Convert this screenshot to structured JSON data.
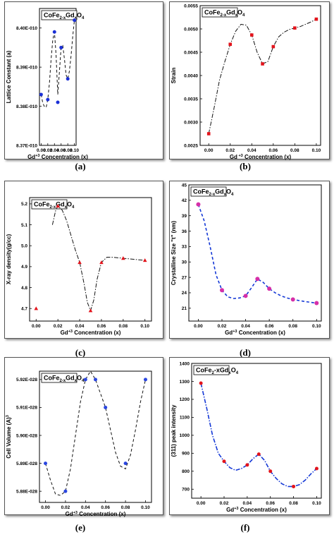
{
  "chart_data": [
    {
      "id": "a",
      "type": "scatter",
      "letter": "(a)",
      "legend": {
        "base": "CoFe",
        "sub1": "2-x",
        "mid": "Gd",
        "sub2": "x",
        "end": "O",
        "sub3": "4"
      },
      "xlabel": {
        "base": "Gd",
        "sup": "+3",
        "end": " Concentration (x)"
      },
      "ylabel": "Lattice Constant (a)",
      "x": [
        0.0,
        0.02,
        0.04,
        0.05,
        0.06,
        0.08,
        0.1
      ],
      "y": [
        8.383e-10,
        8.3817e-10,
        8.399e-10,
        8.381e-10,
        8.395e-10,
        8.387e-10,
        8.402e-10
      ],
      "xlim": [
        -0.005,
        0.105
      ],
      "ylim": [
        8.37e-10,
        8.405e-10
      ],
      "xticks": [
        0.0,
        0.02,
        0.04,
        0.06,
        0.08,
        0.1
      ],
      "xtick_labels": [
        "0.00",
        "0.02",
        "0.04",
        "0.06",
        "0.08",
        "0.10"
      ],
      "yticks": [
        8.37e-10,
        8.38e-10,
        8.39e-10,
        8.4e-10
      ],
      "ytick_labels": [
        "8.37E-010",
        "8.38E-010",
        "8.39E-010",
        "8.40E-010"
      ],
      "marker": "circle",
      "marker_color": "#1a2fd6",
      "line_style": "dash",
      "line_color": "#111111",
      "fit": [
        [
          0.0,
          8.383
        ],
        [
          0.005,
          8.3808
        ],
        [
          0.01,
          8.3799
        ],
        [
          0.015,
          8.3797
        ],
        [
          0.02,
          8.3817
        ],
        [
          0.025,
          8.386
        ],
        [
          0.03,
          8.392
        ],
        [
          0.035,
          8.397
        ],
        [
          0.04,
          8.399
        ],
        [
          0.045,
          8.393
        ],
        [
          0.05,
          8.383
        ],
        [
          0.055,
          8.389
        ],
        [
          0.06,
          8.395
        ],
        [
          0.065,
          8.3955
        ],
        [
          0.07,
          8.392
        ],
        [
          0.075,
          8.388
        ],
        [
          0.08,
          8.387
        ],
        [
          0.085,
          8.389
        ],
        [
          0.09,
          8.393
        ],
        [
          0.095,
          8.398
        ],
        [
          0.1,
          8.402
        ]
      ],
      "fit_scale": 1e-10
    },
    {
      "id": "b",
      "type": "scatter",
      "letter": "(b)",
      "legend": {
        "base": "CoFe",
        "sub1": "2-x",
        "mid": "Gd",
        "sub2": "x",
        "end": "O",
        "sub3": "4"
      },
      "xlabel": {
        "base": "Gd",
        "sup": " +3",
        "end": " Concentration (x)"
      },
      "ylabel": "Strain",
      "x": [
        0.0,
        0.02,
        0.04,
        0.05,
        0.06,
        0.08,
        0.1
      ],
      "y": [
        0.00275,
        0.00467,
        0.00487,
        0.00425,
        0.00462,
        0.00502,
        0.00521
      ],
      "xlim": [
        -0.008,
        0.104
      ],
      "ylim": [
        0.0025,
        0.0055
      ],
      "xticks": [
        0.0,
        0.02,
        0.04,
        0.06,
        0.08,
        0.1
      ],
      "xtick_labels": [
        "0.00",
        "0.02",
        "0.04",
        "0.06",
        "0.08",
        "0.10"
      ],
      "yticks": [
        0.0025,
        0.003,
        0.0035,
        0.004,
        0.0045,
        0.005,
        0.0055
      ],
      "ytick_labels": [
        "0.0025",
        "0.0030",
        "0.0035",
        "0.0040",
        "0.0045",
        "0.0050",
        "0.0055"
      ],
      "marker": "square",
      "marker_color": "#e3141c",
      "line_style": "dashdot",
      "line_color": "#111111",
      "fit": [
        [
          0.0,
          0.00275
        ],
        [
          0.005,
          0.0033
        ],
        [
          0.01,
          0.0039
        ],
        [
          0.015,
          0.0043
        ],
        [
          0.02,
          0.00467
        ],
        [
          0.025,
          0.00495
        ],
        [
          0.03,
          0.0051
        ],
        [
          0.035,
          0.00508
        ],
        [
          0.04,
          0.00487
        ],
        [
          0.045,
          0.0045
        ],
        [
          0.05,
          0.00425
        ],
        [
          0.055,
          0.0043
        ],
        [
          0.06,
          0.00462
        ],
        [
          0.065,
          0.00483
        ],
        [
          0.07,
          0.00493
        ],
        [
          0.075,
          0.00499
        ],
        [
          0.08,
          0.00502
        ],
        [
          0.085,
          0.00505
        ],
        [
          0.09,
          0.0051
        ],
        [
          0.095,
          0.00515
        ],
        [
          0.1,
          0.00521
        ]
      ],
      "fit_scale": 1
    },
    {
      "id": "c",
      "type": "scatter",
      "letter": "(c)",
      "legend": {
        "base": "CoFe",
        "sub1": "2-x",
        "mid": "Gd",
        "sub2": "x",
        "end": "O",
        "sub3": "4"
      },
      "xlabel": {
        "base": "Gd",
        "sup": "+3",
        "end": " Concentration (x)"
      },
      "ylabel": "X-ray density(g/cc)",
      "x": [
        0.0,
        0.02,
        0.04,
        0.05,
        0.06,
        0.08,
        0.1
      ],
      "y": [
        4.7,
        5.19,
        4.92,
        4.69,
        4.92,
        4.94,
        4.93
      ],
      "xlim": [
        -0.006,
        0.106
      ],
      "ylim": [
        4.64,
        5.23
      ],
      "xticks": [
        0.0,
        0.02,
        0.04,
        0.06,
        0.08,
        0.1
      ],
      "xtick_labels": [
        "0.00",
        "0.02",
        "0.04",
        "0.06",
        "0.08",
        "0.10"
      ],
      "yticks": [
        4.7,
        4.8,
        4.9,
        5.0,
        5.1,
        5.2
      ],
      "ytick_labels": [
        "4.7",
        "4.8",
        "4.9",
        "5.0",
        "5.1",
        "5.2"
      ],
      "marker": "triangle",
      "marker_color": "#e3141c",
      "line_style": "dashdot",
      "line_color": "#111111",
      "fit": [
        [
          0.015,
          5.1
        ],
        [
          0.018,
          5.17
        ],
        [
          0.02,
          5.19
        ],
        [
          0.024,
          5.17
        ],
        [
          0.028,
          5.12
        ],
        [
          0.032,
          5.05
        ],
        [
          0.036,
          4.98
        ],
        [
          0.04,
          4.92
        ],
        [
          0.044,
          4.82
        ],
        [
          0.047,
          4.73
        ],
        [
          0.05,
          4.69
        ],
        [
          0.053,
          4.74
        ],
        [
          0.056,
          4.84
        ],
        [
          0.06,
          4.92
        ],
        [
          0.065,
          4.945
        ],
        [
          0.07,
          4.945
        ],
        [
          0.08,
          4.94
        ],
        [
          0.09,
          4.935
        ],
        [
          0.1,
          4.93
        ]
      ],
      "fit_scale": 1
    },
    {
      "id": "d",
      "type": "scatter",
      "letter": "(d)",
      "legend": {
        "base": "CoFe",
        "sub1": "2-x",
        "mid": "Gd",
        "sub2": "x",
        "end": "O",
        "sub3": "4"
      },
      "xlabel": {
        "base": "Gd",
        "sup": "+3",
        "end": " Concentration (x)"
      },
      "ylabel": "Crystalline Size \"t\"  (nm)",
      "x": [
        0.0,
        0.02,
        0.04,
        0.05,
        0.06,
        0.08,
        0.1
      ],
      "y": [
        41.2,
        24.5,
        23.4,
        26.7,
        24.8,
        22.7,
        22.0
      ],
      "xlim": [
        -0.008,
        0.104
      ],
      "ylim": [
        18.5,
        45
      ],
      "xticks": [
        0.0,
        0.02,
        0.04,
        0.06,
        0.08,
        0.1
      ],
      "xtick_labels": [
        "0.00",
        "0.02",
        "0.04",
        "0.06",
        "0.08",
        "0.10"
      ],
      "yticks": [
        21,
        24,
        27,
        30,
        33,
        36,
        39,
        42,
        45
      ],
      "ytick_labels": [
        "21",
        "24",
        "27",
        "30",
        "33",
        "36",
        "39",
        "42",
        "45"
      ],
      "marker": "circle",
      "marker_color": "#d62fa8",
      "line_style": "dash",
      "line_color": "#1438d6",
      "fit": [
        [
          0.0,
          41.2
        ],
        [
          0.005,
          38.0
        ],
        [
          0.01,
          33.0
        ],
        [
          0.015,
          27.5
        ],
        [
          0.02,
          24.5
        ],
        [
          0.025,
          23.2
        ],
        [
          0.03,
          22.9
        ],
        [
          0.035,
          23.0
        ],
        [
          0.04,
          23.4
        ],
        [
          0.045,
          25.0
        ],
        [
          0.05,
          26.7
        ],
        [
          0.055,
          26.0
        ],
        [
          0.06,
          24.8
        ],
        [
          0.065,
          24.0
        ],
        [
          0.07,
          23.4
        ],
        [
          0.075,
          23.0
        ],
        [
          0.08,
          22.7
        ],
        [
          0.09,
          22.3
        ],
        [
          0.1,
          22.0
        ]
      ],
      "fit_scale": 1
    },
    {
      "id": "e",
      "type": "scatter",
      "letter": "(e)",
      "legend": {
        "base": "CoFe",
        "sub1": "2-x",
        "mid": "Gd",
        "sub2": "x",
        "end": "O",
        "sub3": "4"
      },
      "xlabel": {
        "base": "Gd",
        "sup": "+3",
        "end": " Concentration (x)"
      },
      "ylabel": "Cell Volume (A)",
      "ylabel_sup": "3",
      "x": [
        0.0,
        0.02,
        0.04,
        0.05,
        0.06,
        0.08,
        0.1
      ],
      "y": [
        5.89e-28,
        5.88e-28,
        5.92e-28,
        5.92e-28,
        5.91e-28,
        5.89e-28,
        5.92e-28
      ],
      "xlim": [
        -0.006,
        0.106
      ],
      "ylim": [
        5.876e-28,
        5.923e-28
      ],
      "xticks": [
        0.0,
        0.02,
        0.04,
        0.06,
        0.08,
        0.1
      ],
      "xtick_labels": [
        "0.00",
        "0.02",
        "0.04",
        "0.06",
        "0.08",
        "0.10"
      ],
      "yticks": [
        5.88e-28,
        5.89e-28,
        5.9e-28,
        5.91e-28,
        5.92e-28
      ],
      "ytick_labels": [
        "5.88E-028",
        "5.89E-028",
        "5.90E-028",
        "5.91E-028",
        "5.92E-028"
      ],
      "marker": "circle",
      "marker_color": "#2a46e0",
      "line_style": "dash",
      "line_color": "#111111",
      "fit": [
        [
          0.0,
          5.89
        ],
        [
          0.005,
          5.884
        ],
        [
          0.01,
          5.879
        ],
        [
          0.015,
          5.8785
        ],
        [
          0.02,
          5.88
        ],
        [
          0.025,
          5.888
        ],
        [
          0.03,
          5.9
        ],
        [
          0.035,
          5.912
        ],
        [
          0.04,
          5.92
        ],
        [
          0.045,
          5.923
        ],
        [
          0.05,
          5.92
        ],
        [
          0.055,
          5.915
        ],
        [
          0.06,
          5.91
        ],
        [
          0.065,
          5.902
        ],
        [
          0.07,
          5.894
        ],
        [
          0.075,
          5.889
        ],
        [
          0.08,
          5.888
        ],
        [
          0.085,
          5.893
        ],
        [
          0.09,
          5.902
        ],
        [
          0.095,
          5.912
        ],
        [
          0.1,
          5.92
        ]
      ],
      "fit_scale": 1e-28
    },
    {
      "id": "f",
      "type": "scatter",
      "letter": "(f)",
      "legend": {
        "base": "CoFe",
        "sub1": "2",
        "mid": "-xGd",
        "sub2": "x",
        "end": "O",
        "sub3": "4"
      },
      "xlabel": {
        "base": "Gd",
        "sup": "+3",
        "end": " Concentration (x)"
      },
      "ylabel": "(311) peak intensity",
      "x": [
        0.0,
        0.02,
        0.04,
        0.05,
        0.06,
        0.08,
        0.1
      ],
      "y": [
        1290,
        855,
        835,
        895,
        800,
        715,
        815
      ],
      "xlim": [
        -0.008,
        0.104
      ],
      "ylim": [
        650,
        1400
      ],
      "xticks": [
        0.0,
        0.02,
        0.04,
        0.06,
        0.08,
        0.1
      ],
      "xtick_labels": [
        "0.00",
        "0.02",
        "0.04",
        "0.06",
        "0.08",
        "0.10"
      ],
      "yticks": [
        700,
        800,
        900,
        1000,
        1100,
        1200,
        1300,
        1400
      ],
      "ytick_labels": [
        "700",
        "800",
        "900",
        "1000",
        "1100",
        "1200",
        "1300",
        "1400"
      ],
      "marker": "circle",
      "marker_color": "#e3141c",
      "line_style": "dashdot",
      "line_color": "#1438d6",
      "fit": [
        [
          0.0,
          1290
        ],
        [
          0.005,
          1150
        ],
        [
          0.01,
          1000
        ],
        [
          0.015,
          900
        ],
        [
          0.02,
          855
        ],
        [
          0.025,
          820
        ],
        [
          0.03,
          805
        ],
        [
          0.035,
          815
        ],
        [
          0.04,
          835
        ],
        [
          0.045,
          870
        ],
        [
          0.05,
          895
        ],
        [
          0.055,
          860
        ],
        [
          0.06,
          800
        ],
        [
          0.065,
          760
        ],
        [
          0.07,
          730
        ],
        [
          0.075,
          715
        ],
        [
          0.08,
          715
        ],
        [
          0.085,
          725
        ],
        [
          0.09,
          750
        ],
        [
          0.095,
          785
        ],
        [
          0.1,
          815
        ]
      ],
      "fit_scale": 1
    }
  ]
}
